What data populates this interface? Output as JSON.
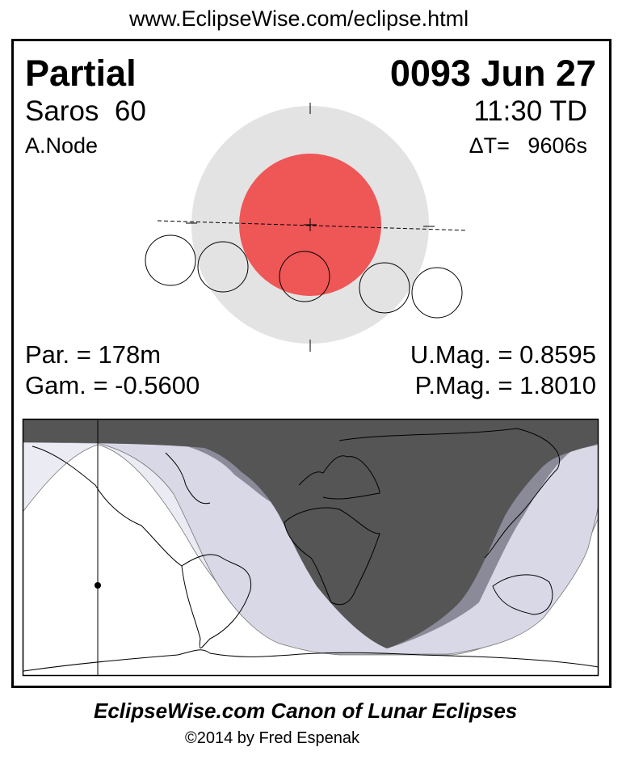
{
  "header_url": "www.EclipseWise.com/eclipse.html",
  "eclipse": {
    "type": "Partial",
    "date": "0093 Jun 27",
    "saros": "Saros  60",
    "time": "11:30 TD",
    "node": "A.Node",
    "delta_t": "ΔT=   9606s",
    "partial_duration": "Par. = 178m",
    "gamma": "Gam. = -0.5600",
    "umbral_magnitude": "U.Mag. = 0.8595",
    "penumbral_magnitude": "P.Mag. = 1.8010"
  },
  "colors": {
    "penumbra": "#e3e3e3",
    "umbra": "#ef5656",
    "map_night": "#555555",
    "map_umbral_edge": "#8a8a98",
    "map_penumbral": "#d8d8e6",
    "map_penumbral_outer": "#ebebf3"
  },
  "footer": {
    "title": "EclipseWise.com Canon of Lunar Eclipses",
    "copyright": "©2014 by Fred Espenak"
  }
}
